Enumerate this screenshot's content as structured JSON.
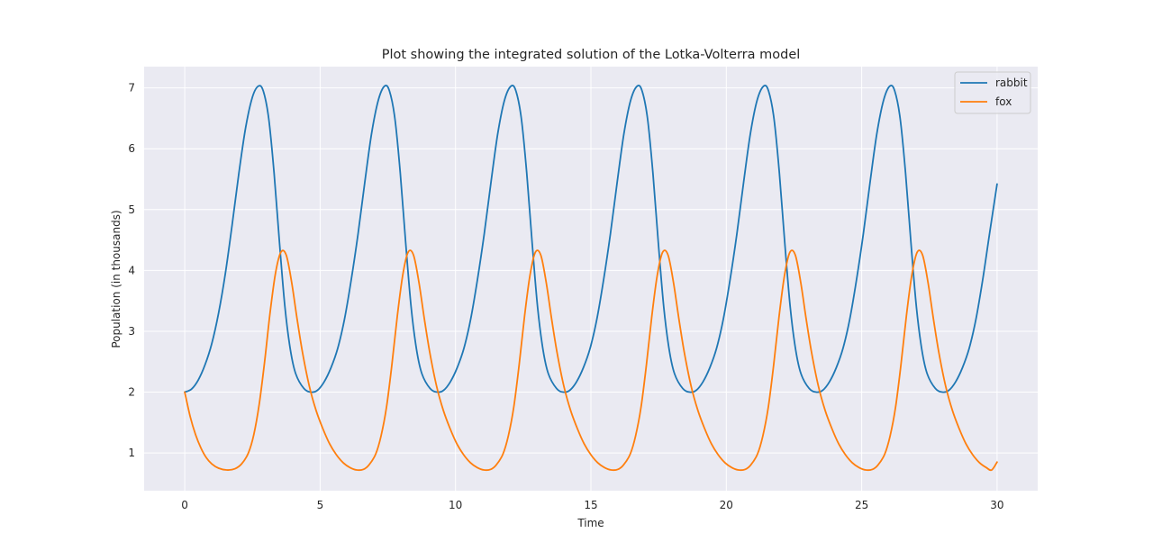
{
  "chart_data": {
    "type": "line",
    "title": "Plot showing the integrated solution of the Lotka-Volterra model",
    "xlabel": "Time",
    "ylabel": "Population (in thousands)",
    "xlim": [
      -1.5,
      31.5
    ],
    "ylim": [
      0.38,
      7.35
    ],
    "xticks": [
      0,
      5,
      10,
      15,
      20,
      25,
      30
    ],
    "yticks": [
      1,
      2,
      3,
      4,
      5,
      6,
      7
    ],
    "grid": true,
    "legend_position": "top-right",
    "colors": {
      "background": "#eaeaf2",
      "grid": "#ffffff",
      "rabbit": "#1f77b4",
      "fox": "#ff7f0e"
    },
    "series": [
      {
        "name": "rabbit",
        "color": "#1f77b4",
        "points": [
          [
            0,
            2.0
          ],
          [
            0.25,
            2.05
          ],
          [
            0.5,
            2.2
          ],
          [
            0.75,
            2.45
          ],
          [
            1.0,
            2.8
          ],
          [
            1.25,
            3.3
          ],
          [
            1.5,
            3.95
          ],
          [
            1.75,
            4.75
          ],
          [
            2.0,
            5.6
          ],
          [
            2.25,
            6.35
          ],
          [
            2.5,
            6.85
          ],
          [
            2.72,
            7.03
          ],
          [
            2.9,
            6.95
          ],
          [
            3.1,
            6.5
          ],
          [
            3.3,
            5.6
          ],
          [
            3.5,
            4.45
          ],
          [
            3.7,
            3.4
          ],
          [
            3.9,
            2.7
          ],
          [
            4.1,
            2.3
          ],
          [
            4.4,
            2.06
          ],
          [
            4.66,
            2.0
          ],
          [
            4.9,
            2.03
          ],
          [
            5.15,
            2.17
          ],
          [
            5.4,
            2.4
          ],
          [
            5.65,
            2.72
          ],
          [
            5.9,
            3.2
          ],
          [
            6.15,
            3.85
          ],
          [
            6.4,
            4.6
          ],
          [
            6.65,
            5.45
          ],
          [
            6.9,
            6.25
          ],
          [
            7.15,
            6.8
          ],
          [
            7.38,
            7.03
          ],
          [
            7.56,
            6.95
          ],
          [
            7.76,
            6.5
          ],
          [
            7.96,
            5.6
          ],
          [
            8.16,
            4.45
          ],
          [
            8.36,
            3.4
          ],
          [
            8.56,
            2.7
          ],
          [
            8.76,
            2.3
          ],
          [
            9.06,
            2.06
          ],
          [
            9.32,
            2.0
          ],
          [
            9.56,
            2.03
          ],
          [
            9.81,
            2.17
          ],
          [
            10.06,
            2.4
          ],
          [
            10.31,
            2.72
          ],
          [
            10.56,
            3.2
          ],
          [
            10.81,
            3.85
          ],
          [
            11.06,
            4.6
          ],
          [
            11.31,
            5.45
          ],
          [
            11.56,
            6.25
          ],
          [
            11.81,
            6.8
          ],
          [
            12.05,
            7.03
          ],
          [
            12.23,
            6.95
          ],
          [
            12.43,
            6.5
          ],
          [
            12.63,
            5.6
          ],
          [
            12.83,
            4.45
          ],
          [
            13.03,
            3.4
          ],
          [
            13.23,
            2.7
          ],
          [
            13.43,
            2.3
          ],
          [
            13.73,
            2.06
          ],
          [
            13.98,
            2.0
          ],
          [
            14.22,
            2.03
          ],
          [
            14.47,
            2.17
          ],
          [
            14.72,
            2.4
          ],
          [
            14.97,
            2.72
          ],
          [
            15.22,
            3.2
          ],
          [
            15.47,
            3.85
          ],
          [
            15.72,
            4.6
          ],
          [
            15.97,
            5.45
          ],
          [
            16.22,
            6.25
          ],
          [
            16.47,
            6.8
          ],
          [
            16.71,
            7.03
          ],
          [
            16.89,
            6.95
          ],
          [
            17.09,
            6.5
          ],
          [
            17.29,
            5.6
          ],
          [
            17.49,
            4.45
          ],
          [
            17.69,
            3.4
          ],
          [
            17.89,
            2.7
          ],
          [
            18.09,
            2.3
          ],
          [
            18.39,
            2.06
          ],
          [
            18.65,
            2.0
          ],
          [
            18.89,
            2.03
          ],
          [
            19.14,
            2.17
          ],
          [
            19.39,
            2.4
          ],
          [
            19.64,
            2.72
          ],
          [
            19.89,
            3.2
          ],
          [
            20.14,
            3.85
          ],
          [
            20.39,
            4.6
          ],
          [
            20.64,
            5.45
          ],
          [
            20.89,
            6.25
          ],
          [
            21.14,
            6.8
          ],
          [
            21.38,
            7.03
          ],
          [
            21.56,
            6.95
          ],
          [
            21.76,
            6.5
          ],
          [
            21.96,
            5.6
          ],
          [
            22.16,
            4.45
          ],
          [
            22.36,
            3.4
          ],
          [
            22.56,
            2.7
          ],
          [
            22.76,
            2.3
          ],
          [
            23.06,
            2.06
          ],
          [
            23.32,
            2.0
          ],
          [
            23.56,
            2.03
          ],
          [
            23.81,
            2.17
          ],
          [
            24.06,
            2.4
          ],
          [
            24.31,
            2.72
          ],
          [
            24.56,
            3.2
          ],
          [
            24.81,
            3.85
          ],
          [
            25.06,
            4.6
          ],
          [
            25.31,
            5.45
          ],
          [
            25.56,
            6.25
          ],
          [
            25.81,
            6.8
          ],
          [
            26.04,
            7.03
          ],
          [
            26.22,
            6.95
          ],
          [
            26.42,
            6.5
          ],
          [
            26.62,
            5.6
          ],
          [
            26.82,
            4.45
          ],
          [
            27.02,
            3.4
          ],
          [
            27.22,
            2.7
          ],
          [
            27.42,
            2.3
          ],
          [
            27.72,
            2.06
          ],
          [
            27.98,
            2.0
          ],
          [
            28.22,
            2.03
          ],
          [
            28.47,
            2.17
          ],
          [
            28.72,
            2.4
          ],
          [
            28.97,
            2.72
          ],
          [
            29.22,
            3.2
          ],
          [
            29.47,
            3.85
          ],
          [
            29.72,
            4.6
          ],
          [
            30.0,
            5.42
          ]
        ]
      },
      {
        "name": "fox",
        "color": "#ff7f0e",
        "points": [
          [
            0,
            2.0
          ],
          [
            0.2,
            1.6
          ],
          [
            0.4,
            1.3
          ],
          [
            0.6,
            1.08
          ],
          [
            0.8,
            0.92
          ],
          [
            1.0,
            0.82
          ],
          [
            1.25,
            0.75
          ],
          [
            1.55,
            0.72
          ],
          [
            1.85,
            0.74
          ],
          [
            2.1,
            0.82
          ],
          [
            2.35,
            1.0
          ],
          [
            2.55,
            1.3
          ],
          [
            2.75,
            1.8
          ],
          [
            2.95,
            2.5
          ],
          [
            3.15,
            3.3
          ],
          [
            3.35,
            3.95
          ],
          [
            3.55,
            4.3
          ],
          [
            3.75,
            4.25
          ],
          [
            3.95,
            3.8
          ],
          [
            4.15,
            3.2
          ],
          [
            4.35,
            2.65
          ],
          [
            4.6,
            2.1
          ],
          [
            4.85,
            1.7
          ],
          [
            5.1,
            1.4
          ],
          [
            5.35,
            1.15
          ],
          [
            5.6,
            0.97
          ],
          [
            5.85,
            0.84
          ],
          [
            6.1,
            0.76
          ],
          [
            6.35,
            0.72
          ],
          [
            6.6,
            0.73
          ],
          [
            6.8,
            0.8
          ],
          [
            7.05,
            0.98
          ],
          [
            7.25,
            1.28
          ],
          [
            7.45,
            1.75
          ],
          [
            7.65,
            2.45
          ],
          [
            7.85,
            3.25
          ],
          [
            8.05,
            3.92
          ],
          [
            8.25,
            4.3
          ],
          [
            8.45,
            4.25
          ],
          [
            8.65,
            3.8
          ],
          [
            8.85,
            3.2
          ],
          [
            9.05,
            2.65
          ],
          [
            9.3,
            2.1
          ],
          [
            9.55,
            1.7
          ],
          [
            9.8,
            1.4
          ],
          [
            10.05,
            1.15
          ],
          [
            10.3,
            0.97
          ],
          [
            10.55,
            0.84
          ],
          [
            10.8,
            0.76
          ],
          [
            11.05,
            0.72
          ],
          [
            11.3,
            0.73
          ],
          [
            11.5,
            0.8
          ],
          [
            11.75,
            0.98
          ],
          [
            11.95,
            1.28
          ],
          [
            12.15,
            1.75
          ],
          [
            12.35,
            2.45
          ],
          [
            12.55,
            3.25
          ],
          [
            12.75,
            3.92
          ],
          [
            12.95,
            4.3
          ],
          [
            13.15,
            4.25
          ],
          [
            13.35,
            3.8
          ],
          [
            13.55,
            3.2
          ],
          [
            13.75,
            2.65
          ],
          [
            14.0,
            2.1
          ],
          [
            14.25,
            1.7
          ],
          [
            14.5,
            1.4
          ],
          [
            14.75,
            1.15
          ],
          [
            15.0,
            0.97
          ],
          [
            15.25,
            0.84
          ],
          [
            15.5,
            0.76
          ],
          [
            15.75,
            0.72
          ],
          [
            16.0,
            0.73
          ],
          [
            16.2,
            0.8
          ],
          [
            16.45,
            0.98
          ],
          [
            16.65,
            1.28
          ],
          [
            16.85,
            1.75
          ],
          [
            17.05,
            2.45
          ],
          [
            17.25,
            3.25
          ],
          [
            17.45,
            3.92
          ],
          [
            17.65,
            4.3
          ],
          [
            17.85,
            4.25
          ],
          [
            18.05,
            3.8
          ],
          [
            18.25,
            3.2
          ],
          [
            18.45,
            2.65
          ],
          [
            18.7,
            2.1
          ],
          [
            18.95,
            1.7
          ],
          [
            19.2,
            1.4
          ],
          [
            19.45,
            1.15
          ],
          [
            19.7,
            0.97
          ],
          [
            19.95,
            0.84
          ],
          [
            20.2,
            0.76
          ],
          [
            20.45,
            0.72
          ],
          [
            20.7,
            0.73
          ],
          [
            20.9,
            0.8
          ],
          [
            21.15,
            0.98
          ],
          [
            21.35,
            1.28
          ],
          [
            21.55,
            1.75
          ],
          [
            21.75,
            2.45
          ],
          [
            21.95,
            3.25
          ],
          [
            22.15,
            3.92
          ],
          [
            22.35,
            4.3
          ],
          [
            22.55,
            4.25
          ],
          [
            22.75,
            3.8
          ],
          [
            22.95,
            3.2
          ],
          [
            23.15,
            2.65
          ],
          [
            23.4,
            2.1
          ],
          [
            23.65,
            1.7
          ],
          [
            23.9,
            1.4
          ],
          [
            24.15,
            1.15
          ],
          [
            24.4,
            0.97
          ],
          [
            24.65,
            0.84
          ],
          [
            24.9,
            0.76
          ],
          [
            25.15,
            0.72
          ],
          [
            25.4,
            0.73
          ],
          [
            25.6,
            0.8
          ],
          [
            25.85,
            0.98
          ],
          [
            26.05,
            1.28
          ],
          [
            26.25,
            1.75
          ],
          [
            26.45,
            2.45
          ],
          [
            26.65,
            3.25
          ],
          [
            26.85,
            3.92
          ],
          [
            27.05,
            4.3
          ],
          [
            27.25,
            4.25
          ],
          [
            27.45,
            3.8
          ],
          [
            27.65,
            3.2
          ],
          [
            27.85,
            2.65
          ],
          [
            28.1,
            2.1
          ],
          [
            28.35,
            1.7
          ],
          [
            28.6,
            1.4
          ],
          [
            28.85,
            1.15
          ],
          [
            29.1,
            0.97
          ],
          [
            29.35,
            0.84
          ],
          [
            29.6,
            0.76
          ],
          [
            29.8,
            0.72
          ],
          [
            30.0,
            0.85
          ]
        ]
      }
    ]
  }
}
